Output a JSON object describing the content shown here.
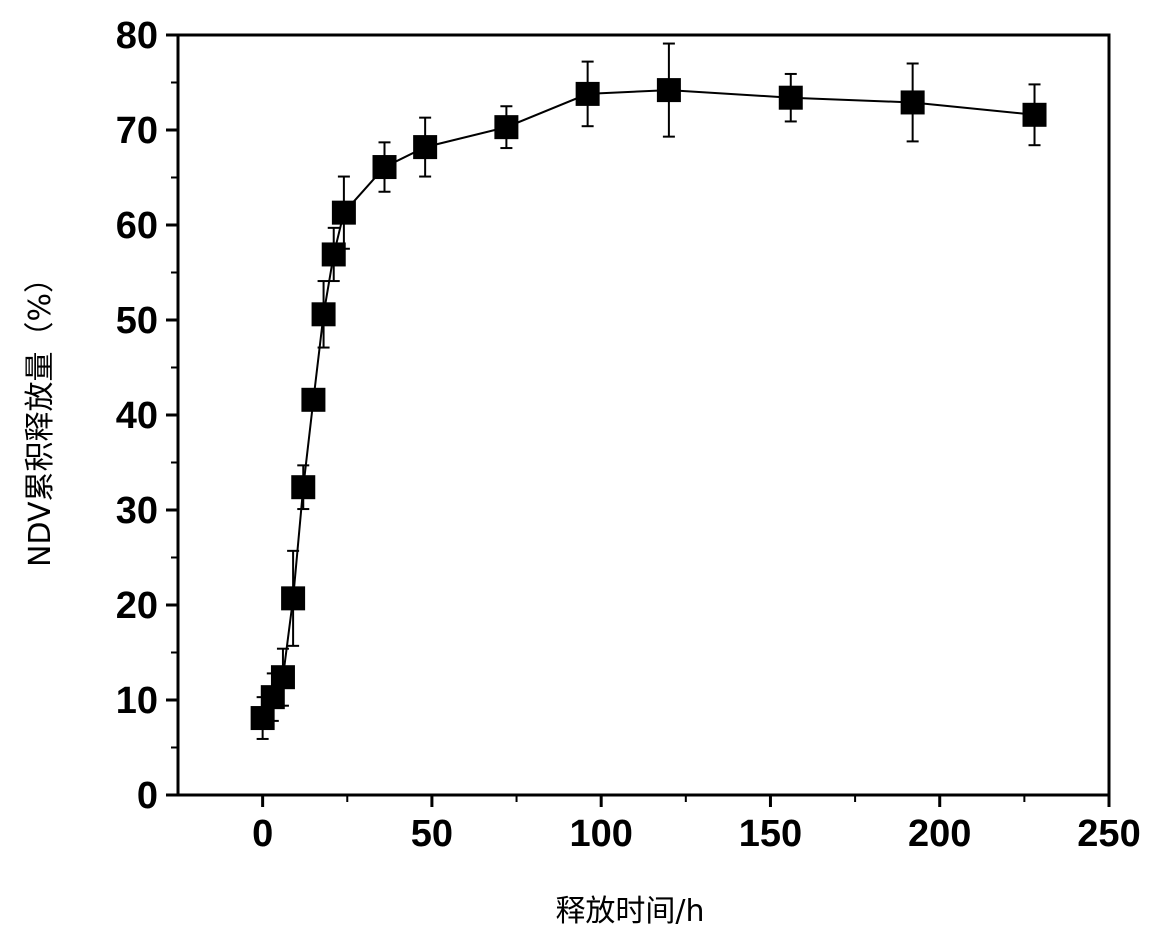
{
  "chart_data": {
    "type": "scatter",
    "title": "",
    "xlabel": "释放时间/h",
    "ylabel": "NDV累积释放量（%）",
    "xlim": [
      -25,
      250
    ],
    "ylim": [
      0,
      80
    ],
    "xticks": [
      0,
      50,
      100,
      150,
      200,
      250
    ],
    "xtick_labels": [
      "0",
      "50",
      "100",
      "150",
      "200",
      "250"
    ],
    "yticks": [
      0,
      10,
      20,
      30,
      40,
      50,
      60,
      70,
      80
    ],
    "ytick_labels": [
      "0",
      "10",
      "20",
      "30",
      "40",
      "50",
      "60",
      "70",
      "80"
    ],
    "grid": false,
    "legend": "none",
    "marker": "filled-square",
    "line": "connected",
    "color": "#000000",
    "series": [
      {
        "x": [
          0,
          3,
          6,
          9,
          12,
          15,
          18,
          21,
          24,
          36,
          48,
          72,
          96,
          120,
          156,
          192,
          228
        ],
        "y": [
          8.1,
          10.3,
          12.4,
          20.7,
          32.4,
          41.6,
          50.6,
          56.9,
          61.3,
          66.1,
          68.2,
          70.3,
          73.8,
          74.2,
          73.4,
          72.9,
          71.6
        ],
        "error": [
          2.2,
          2.5,
          3.0,
          5.0,
          2.3,
          1.0,
          3.5,
          2.8,
          3.8,
          2.6,
          3.1,
          2.2,
          3.4,
          4.9,
          2.5,
          4.1,
          3.2
        ]
      }
    ]
  }
}
